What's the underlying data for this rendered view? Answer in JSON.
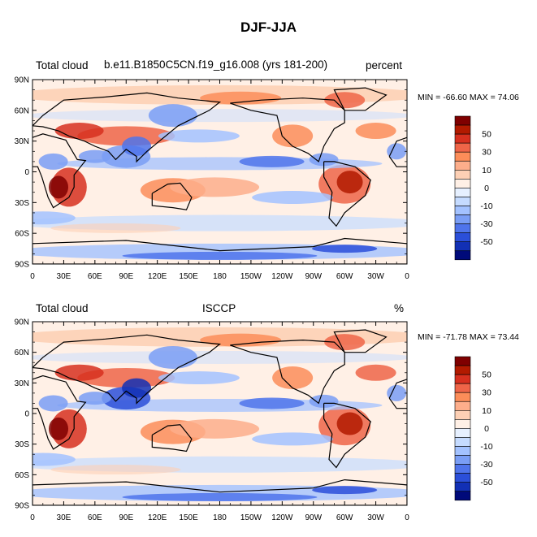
{
  "title": "DJF-JJA",
  "panels": [
    {
      "left_label": "Total cloud",
      "center_label": "b.e11.B1850C5CN.f19_g16.008 (yrs 181-200)",
      "right_label": "percent",
      "minmax": "MIN = -66.60 MAX =  74.06"
    },
    {
      "left_label": "Total cloud",
      "center_label": "ISCCP",
      "right_label": "%",
      "minmax": "MIN = -71.78 MAX =  73.44"
    }
  ],
  "axes": {
    "lat_labels": [
      "90N",
      "60N",
      "30N",
      "0",
      "30S",
      "60S",
      "90S"
    ],
    "lon_labels": [
      "0",
      "30E",
      "60E",
      "90E",
      "120E",
      "150E",
      "180",
      "150W",
      "120W",
      "90W",
      "60W",
      "30W",
      "0"
    ]
  },
  "colorbar": {
    "labels": [
      "50",
      "30",
      "10",
      "0",
      "-10",
      "-30",
      "-50"
    ],
    "colors": [
      "#7f0000",
      "#b21a00",
      "#d7301f",
      "#ef6548",
      "#fc8d59",
      "#fdae8b",
      "#fdd0b5",
      "#fff0e6",
      "#e6f0ff",
      "#c5dbff",
      "#a3c2ff",
      "#7a9ef5",
      "#4f74eb",
      "#2b4fd9",
      "#1230b5",
      "#000a7a"
    ]
  }
}
